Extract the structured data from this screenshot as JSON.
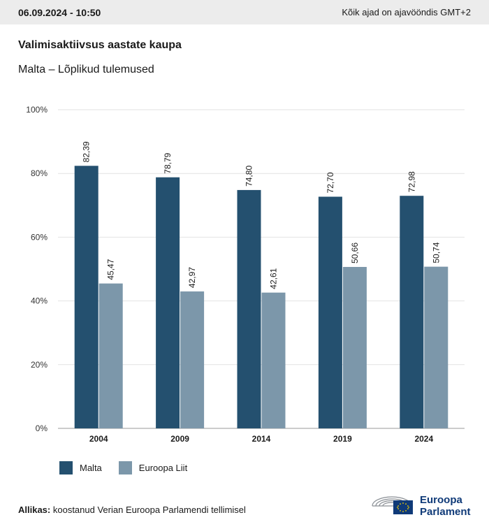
{
  "header": {
    "date": "06.09.2024 - 10:50",
    "timezone_note": "Kõik ajad on ajavööndis GMT+2"
  },
  "chart_title": "Valimisaktiivsus aastate kaupa",
  "chart_subtitle": "Malta – Lõplikud tulemused",
  "chart_data": {
    "type": "bar",
    "categories": [
      "2004",
      "2009",
      "2014",
      "2019",
      "2024"
    ],
    "series": [
      {
        "name": "Malta",
        "color": "#24506f",
        "values": [
          82.39,
          78.79,
          74.8,
          72.7,
          72.98
        ],
        "labels": [
          "82,39",
          "78,79",
          "74,80",
          "72,70",
          "72,98"
        ]
      },
      {
        "name": "Euroopa Liit",
        "color": "#7c97aa",
        "values": [
          45.47,
          42.97,
          42.61,
          50.66,
          50.74
        ],
        "labels": [
          "45,47",
          "42,97",
          "42,61",
          "50,66",
          "50,74"
        ]
      }
    ],
    "ylim": [
      0,
      100
    ],
    "yticks": [
      "0%",
      "20%",
      "40%",
      "60%",
      "80%",
      "100%"
    ],
    "grid": true,
    "legend_position": "bottom-left"
  },
  "legend": {
    "items": [
      {
        "label": "Malta",
        "color": "#24506f"
      },
      {
        "label": "Euroopa Liit",
        "color": "#7c97aa"
      }
    ]
  },
  "footer": {
    "source_label": "Allikas:",
    "source_text": " koostanud Verian Euroopa Parlamendi tellimisel",
    "logo_line1": "Euroopa",
    "logo_line2": "Parlament",
    "logo_icons": [
      "hemicycle-icon",
      "eu-flag-icon"
    ]
  }
}
